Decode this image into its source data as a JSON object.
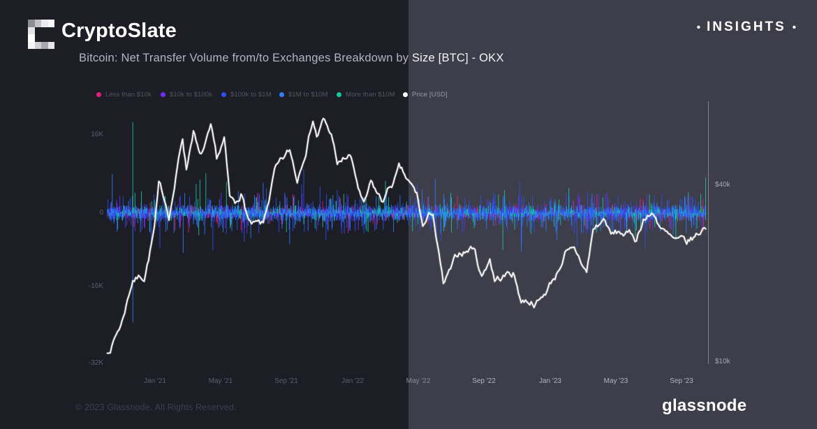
{
  "brand": {
    "name": "CryptoSlate",
    "insights_label": "INSIGHTS",
    "insights_bullet": "•"
  },
  "header": {
    "title": "Bitcoin: Net Transfer Volume from/to Exchanges Breakdown by Size [BTC] - OKX"
  },
  "footer": {
    "copyright": "© 2023 Glassnode. All Rights Reserved.",
    "wordmark": "glassnode"
  },
  "colors": {
    "bg_left": "#1d1d26",
    "bg_right": "#3e3e4a",
    "price_line": "#ffffff",
    "axis_line": "rgba(220,222,232,0.42)",
    "zero_line": "rgba(190,195,215,0.25)"
  },
  "chart_data": {
    "type": "bar+line",
    "title": "Bitcoin: Net Transfer Volume from/to Exchanges Breakdown by Size [BTC] - OKX",
    "legend": [
      {
        "label": "Less than $10k",
        "color": "#e61e78"
      },
      {
        "label": "$10k to $100k",
        "color": "#6f2cf5"
      },
      {
        "label": "$100k to $1M",
        "color": "#2c4ff2"
      },
      {
        "label": "$1M to $10M",
        "color": "#2f7df7"
      },
      {
        "label": "More than $10M",
        "color": "#14c8a0"
      },
      {
        "label": "Price [USD]",
        "color": "#ffffff"
      }
    ],
    "y_axis_left": {
      "unit": "BTC",
      "tick_labels": [
        "16K",
        "0",
        "-16K",
        "-32K"
      ],
      "tick_values": [
        16000,
        0,
        -16000,
        -32000
      ]
    },
    "y_axis_right": {
      "unit": "USD",
      "scale": "log",
      "tick_labels": [
        "$40k",
        "$10k"
      ],
      "tick_values": [
        40000,
        10000
      ]
    },
    "x_axis": {
      "tick_labels": [
        "Jan '21",
        "May '21",
        "Sep '21",
        "Jan '22",
        "May '22",
        "Sep '22",
        "Jan '23",
        "May '23",
        "Sep '23"
      ]
    },
    "price_series_usd": [
      [
        "2020-10-05",
        10700
      ],
      [
        "2020-11-01",
        13800
      ],
      [
        "2020-11-21",
        18900
      ],
      [
        "2020-12-12",
        18800
      ],
      [
        "2020-12-31",
        29000
      ],
      [
        "2021-01-08",
        41200
      ],
      [
        "2021-01-27",
        30400
      ],
      [
        "2021-02-21",
        57400
      ],
      [
        "2021-02-28",
        45200
      ],
      [
        "2021-03-13",
        61200
      ],
      [
        "2021-03-25",
        51400
      ],
      [
        "2021-04-14",
        64600
      ],
      [
        "2021-04-25",
        49200
      ],
      [
        "2021-05-09",
        58300
      ],
      [
        "2021-05-19",
        36800
      ],
      [
        "2021-05-29",
        34700
      ],
      [
        "2021-06-09",
        37300
      ],
      [
        "2021-06-26",
        30200
      ],
      [
        "2021-07-20",
        29800
      ],
      [
        "2021-08-10",
        45600
      ],
      [
        "2021-08-23",
        49500
      ],
      [
        "2021-09-07",
        52700
      ],
      [
        "2021-09-21",
        40700
      ],
      [
        "2021-10-20",
        66000
      ],
      [
        "2021-10-27",
        58500
      ],
      [
        "2021-11-08",
        67500
      ],
      [
        "2021-11-28",
        54700
      ],
      [
        "2021-12-04",
        47100
      ],
      [
        "2021-12-27",
        50700
      ],
      [
        "2022-01-22",
        35100
      ],
      [
        "2022-02-04",
        41500
      ],
      [
        "2022-02-24",
        35200
      ],
      [
        "2022-03-28",
        47500
      ],
      [
        "2022-04-30",
        37700
      ],
      [
        "2022-05-11",
        29000
      ],
      [
        "2022-05-30",
        31700
      ],
      [
        "2022-06-18",
        18500
      ],
      [
        "2022-07-20",
        23300
      ],
      [
        "2022-08-13",
        24400
      ],
      [
        "2022-08-28",
        19600
      ],
      [
        "2022-09-12",
        22400
      ],
      [
        "2022-09-21",
        18800
      ],
      [
        "2022-10-25",
        20100
      ],
      [
        "2022-11-09",
        15900
      ],
      [
        "2022-12-16",
        16600
      ],
      [
        "2023-01-13",
        19900
      ],
      [
        "2023-01-29",
        23700
      ],
      [
        "2023-02-15",
        24600
      ],
      [
        "2023-03-10",
        20200
      ],
      [
        "2023-03-22",
        28300
      ],
      [
        "2023-04-13",
        30300
      ],
      [
        "2023-04-24",
        27300
      ],
      [
        "2023-05-17",
        26900
      ],
      [
        "2023-06-10",
        25800
      ],
      [
        "2023-06-23",
        30600
      ],
      [
        "2023-07-13",
        31300
      ],
      [
        "2023-08-16",
        26600
      ],
      [
        "2023-09-11",
        25200
      ],
      [
        "2023-10-01",
        27200
      ],
      [
        "2023-10-16",
        28400
      ]
    ],
    "notable_spikes_btc": [
      [
        "2020-11-21",
        18600,
        4
      ],
      [
        "2020-11-21",
        -22400,
        3
      ],
      [
        "2021-01-10",
        -7200,
        2
      ],
      [
        "2021-02-22",
        -8100,
        3
      ],
      [
        "2021-04-18",
        -7600,
        2
      ],
      [
        "2021-06-15",
        -5900,
        2
      ],
      [
        "2021-07-26",
        5100,
        2
      ],
      [
        "2021-09-07",
        -6400,
        3
      ],
      [
        "2021-12-04",
        4700,
        2
      ],
      [
        "2022-05-10",
        4900,
        3
      ],
      [
        "2022-06-14",
        -5700,
        2
      ],
      [
        "2022-11-09",
        -7900,
        3
      ],
      [
        "2022-11-10",
        -6300,
        2
      ],
      [
        "2023-03-12",
        4300,
        2
      ],
      [
        "2023-08-17",
        -4300,
        3
      ],
      [
        "2023-10-16",
        7300,
        4
      ]
    ],
    "bars_description": "Daily net transfer volume noise band, mostly within ±2K BTC around zero, occasional spikes to ±9K BTC",
    "x_range": [
      "2020-10-05",
      "2023-10-16"
    ],
    "y_left_range": [
      -32000,
      24000
    ],
    "grid": "off",
    "legend_position": "top"
  }
}
